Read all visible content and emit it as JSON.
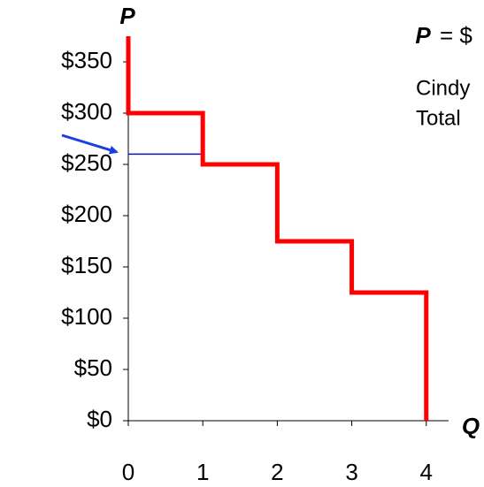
{
  "chart_data": {
    "type": "line",
    "y_label": "P",
    "x_label": "Q",
    "annotations": [
      "= $",
      "Cindy",
      "Total"
    ],
    "x": [
      0,
      0,
      1,
      1,
      2,
      2,
      3,
      3,
      4,
      4
    ],
    "series": [
      {
        "color": "#ff0000",
        "values": [
          375,
          300,
          300,
          250,
          250,
          175,
          175,
          125,
          125,
          0
        ]
      }
    ],
    "price": {
      "value": 260,
      "x": [
        0,
        1
      ],
      "color": "#1010c0"
    },
    "xlim": [
      0,
      4.3
    ],
    "ylim": [
      0,
      375
    ],
    "xticks": [
      0,
      1,
      2,
      3,
      4
    ],
    "yticks": [
      {
        "value": 0,
        "label": "$0"
      },
      {
        "value": 50,
        "label": "$50"
      },
      {
        "value": 100,
        "label": "$100"
      },
      {
        "value": 150,
        "label": "$150"
      },
      {
        "value": 200,
        "label": "$200"
      },
      {
        "value": 250,
        "label": "$250"
      },
      {
        "value": 300,
        "label": "$300"
      },
      {
        "value": 350,
        "label": "$350"
      }
    ]
  }
}
